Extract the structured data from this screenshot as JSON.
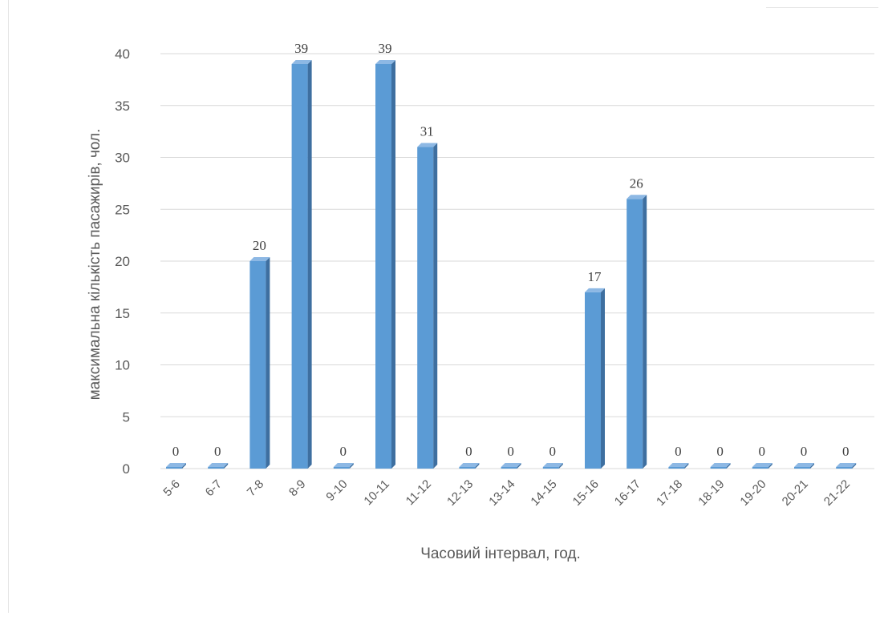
{
  "chart_data": {
    "type": "bar",
    "categories": [
      "5-6",
      "6-7",
      "7-8",
      "8-9",
      "9-10",
      "10-11",
      "11-12",
      "12-13",
      "13-14",
      "14-15",
      "15-16",
      "16-17",
      "17-18",
      "18-19",
      "19-20",
      "20-21",
      "21-22"
    ],
    "values": [
      0,
      0,
      20,
      39,
      0,
      39,
      31,
      0,
      0,
      0,
      17,
      26,
      0,
      0,
      0,
      0,
      0
    ],
    "title": "",
    "xlabel": "Часовий інтервал, год.",
    "ylabel": "максимальна кількість пасажирів, чол.",
    "ylim": [
      0,
      40
    ],
    "yticks": [
      0,
      5,
      10,
      15,
      20,
      25,
      30,
      35,
      40
    ],
    "grid": true,
    "legend": "none",
    "colors": {
      "bar_front": "#5b9bd5",
      "bar_side": "#3e6fa0",
      "bar_top": "#8db8e4",
      "grid": "#d9d9d9"
    }
  }
}
